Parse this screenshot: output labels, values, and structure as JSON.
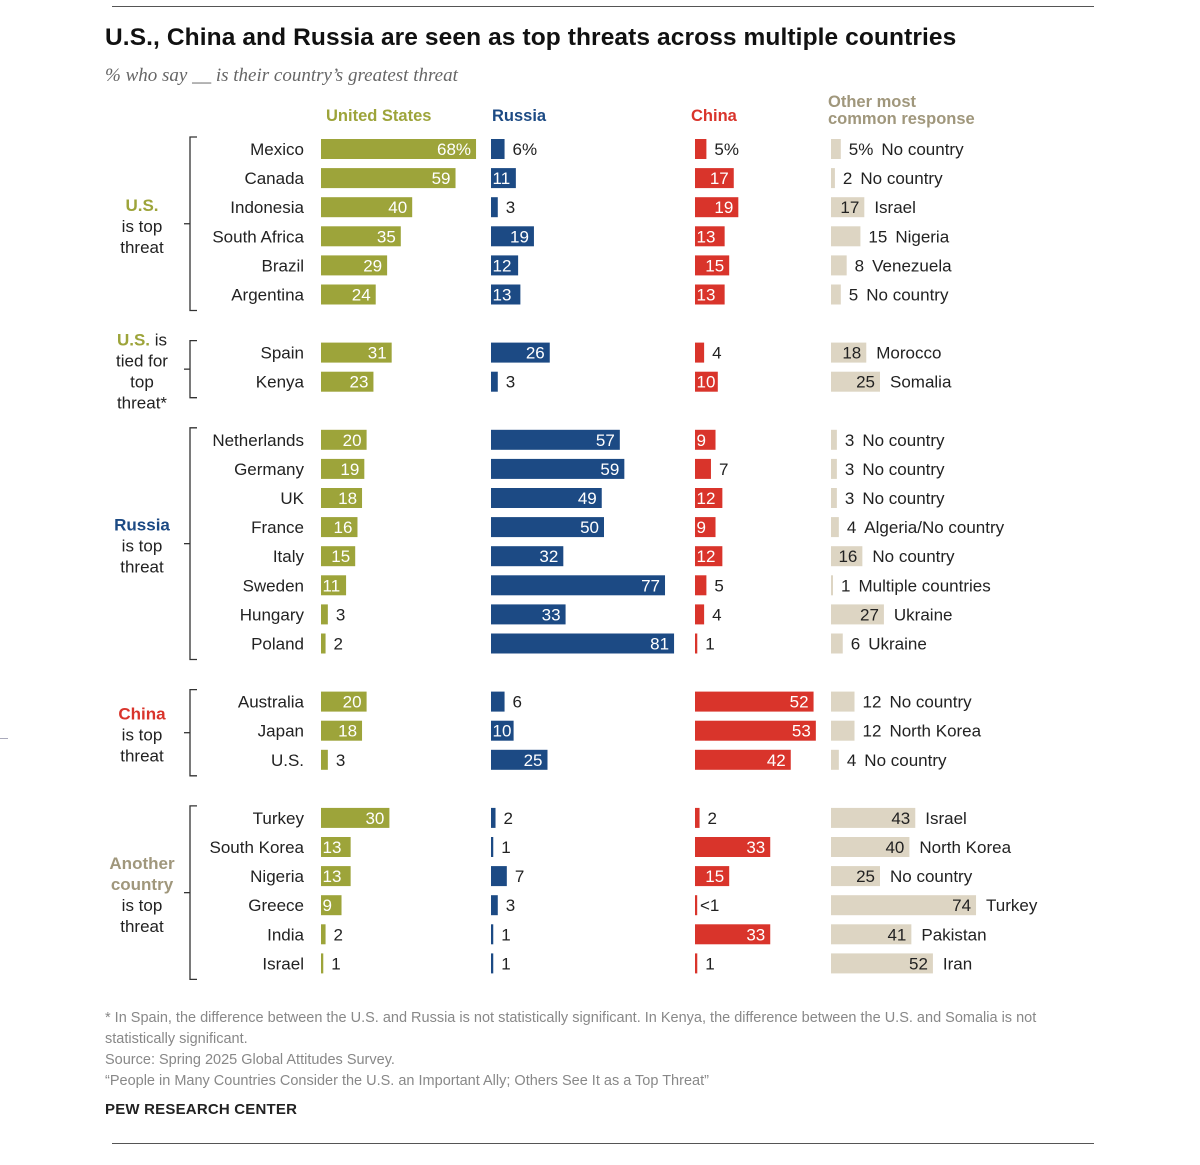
{
  "title": "U.S., China and Russia are seen as top threats across multiple countries",
  "subtitle": "% who say __ is their country’s greatest threat",
  "columns": {
    "us": "United States",
    "russia": "Russia",
    "china": "China",
    "other_line1": "Other most",
    "other_line2": "common response"
  },
  "colors": {
    "us": "#9da43a",
    "russia": "#1c4a84",
    "china": "#d9342b",
    "other": "#ddd5c3",
    "other_text": "#a0977c",
    "bracket": "#333333"
  },
  "chart_data": {
    "type": "bar",
    "title": "U.S., China and Russia are seen as top threats across multiple countries",
    "subtitle": "% who say __ is their country’s greatest threat",
    "series_names": [
      "United States",
      "Russia",
      "China",
      "Other most common response"
    ],
    "groups": [
      {
        "label_lines": [
          "U.S.",
          "is top",
          "threat"
        ],
        "label_colored_lines": 1,
        "label_color": "us",
        "rows": [
          {
            "country": "Mexico",
            "us": 68,
            "us_label": "68%",
            "russia": 6,
            "russia_label": "6%",
            "china": 5,
            "china_label": "5%",
            "other": 5,
            "other_value_label": "5%",
            "other_name": "No country"
          },
          {
            "country": "Canada",
            "us": 59,
            "us_label": "59",
            "russia": 11,
            "russia_label": "11",
            "china": 17,
            "china_label": "17",
            "other": 2,
            "other_value_label": "2",
            "other_name": "No country"
          },
          {
            "country": "Indonesia",
            "us": 40,
            "us_label": "40",
            "russia": 3,
            "russia_label": "3",
            "china": 19,
            "china_label": "19",
            "other": 17,
            "other_value_label": "17",
            "other_name": "Israel"
          },
          {
            "country": "South Africa",
            "us": 35,
            "us_label": "35",
            "russia": 19,
            "russia_label": "19",
            "china": 13,
            "china_label": "13",
            "other": 15,
            "other_value_label": "15",
            "other_name": "Nigeria"
          },
          {
            "country": "Brazil",
            "us": 29,
            "us_label": "29",
            "russia": 12,
            "russia_label": "12",
            "china": 15,
            "china_label": "15",
            "other": 8,
            "other_value_label": "8",
            "other_name": "Venezuela"
          },
          {
            "country": "Argentina",
            "us": 24,
            "us_label": "24",
            "russia": 13,
            "russia_label": "13",
            "china": 13,
            "china_label": "13",
            "other": 5,
            "other_value_label": "5",
            "other_name": "No country"
          }
        ]
      },
      {
        "label_lines": [
          "U.S. is",
          "tied for",
          "top",
          "threat*"
        ],
        "label_colored_prefix": "U.S.",
        "label_color": "us",
        "rows": [
          {
            "country": "Spain",
            "us": 31,
            "us_label": "31",
            "russia": 26,
            "russia_label": "26",
            "china": 4,
            "china_label": "4",
            "other": 18,
            "other_value_label": "18",
            "other_name": "Morocco"
          },
          {
            "country": "Kenya",
            "us": 23,
            "us_label": "23",
            "russia": 3,
            "russia_label": "3",
            "china": 10,
            "china_label": "10",
            "other": 25,
            "other_value_label": "25",
            "other_name": "Somalia"
          }
        ]
      },
      {
        "label_lines": [
          "Russia",
          "is top",
          "threat"
        ],
        "label_colored_lines": 1,
        "label_color": "russia",
        "rows": [
          {
            "country": "Netherlands",
            "us": 20,
            "us_label": "20",
            "russia": 57,
            "russia_label": "57",
            "china": 9,
            "china_label": "9",
            "other": 3,
            "other_value_label": "3",
            "other_name": "No country"
          },
          {
            "country": "Germany",
            "us": 19,
            "us_label": "19",
            "russia": 59,
            "russia_label": "59",
            "china": 7,
            "china_label": "7",
            "other": 3,
            "other_value_label": "3",
            "other_name": "No country"
          },
          {
            "country": "UK",
            "us": 18,
            "us_label": "18",
            "russia": 49,
            "russia_label": "49",
            "china": 12,
            "china_label": "12",
            "other": 3,
            "other_value_label": "3",
            "other_name": "No country"
          },
          {
            "country": "France",
            "us": 16,
            "us_label": "16",
            "russia": 50,
            "russia_label": "50",
            "china": 9,
            "china_label": "9",
            "other": 4,
            "other_value_label": "4",
            "other_name": "Algeria/No country"
          },
          {
            "country": "Italy",
            "us": 15,
            "us_label": "15",
            "russia": 32,
            "russia_label": "32",
            "china": 12,
            "china_label": "12",
            "other": 16,
            "other_value_label": "16",
            "other_name": "No country"
          },
          {
            "country": "Sweden",
            "us": 11,
            "us_label": "11",
            "russia": 77,
            "russia_label": "77",
            "china": 5,
            "china_label": "5",
            "other": 1,
            "other_value_label": "1",
            "other_name": "Multiple countries"
          },
          {
            "country": "Hungary",
            "us": 3,
            "us_label": "3",
            "russia": 33,
            "russia_label": "33",
            "china": 4,
            "china_label": "4",
            "other": 27,
            "other_value_label": "27",
            "other_name": "Ukraine"
          },
          {
            "country": "Poland",
            "us": 2,
            "us_label": "2",
            "russia": 81,
            "russia_label": "81",
            "china": 1,
            "china_label": "1",
            "other": 6,
            "other_value_label": "6",
            "other_name": "Ukraine"
          }
        ]
      },
      {
        "label_lines": [
          "China",
          "is top",
          "threat"
        ],
        "label_colored_lines": 1,
        "label_color": "china",
        "rows": [
          {
            "country": "Australia",
            "us": 20,
            "us_label": "20",
            "russia": 6,
            "russia_label": "6",
            "china": 52,
            "china_label": "52",
            "other": 12,
            "other_value_label": "12",
            "other_name": "No country"
          },
          {
            "country": "Japan",
            "us": 18,
            "us_label": "18",
            "russia": 10,
            "russia_label": "10",
            "china": 53,
            "china_label": "53",
            "other": 12,
            "other_value_label": "12",
            "other_name": "North Korea"
          },
          {
            "country": "U.S.",
            "us": 3,
            "us_label": "3",
            "russia": 25,
            "russia_label": "25",
            "china": 42,
            "china_label": "42",
            "other": 4,
            "other_value_label": "4",
            "other_name": "No country"
          }
        ]
      },
      {
        "label_lines": [
          "Another",
          "country",
          "is top",
          "threat"
        ],
        "label_colored_lines": 2,
        "label_color": "other_text",
        "rows": [
          {
            "country": "Turkey",
            "us": 30,
            "us_label": "30",
            "russia": 2,
            "russia_label": "2",
            "china": 2,
            "china_label": "2",
            "other": 43,
            "other_value_label": "43",
            "other_name": "Israel"
          },
          {
            "country": "South Korea",
            "us": 13,
            "us_label": "13",
            "russia": 1,
            "russia_label": "1",
            "china": 33,
            "china_label": "33",
            "other": 40,
            "other_value_label": "40",
            "other_name": "North Korea"
          },
          {
            "country": "Nigeria",
            "us": 13,
            "us_label": "13",
            "russia": 7,
            "russia_label": "7",
            "china": 15,
            "china_label": "15",
            "other": 25,
            "other_value_label": "25",
            "other_name": "No country"
          },
          {
            "country": "Greece",
            "us": 9,
            "us_label": "9",
            "russia": 3,
            "russia_label": "3",
            "china": 0.3,
            "china_label": "<1",
            "other": 74,
            "other_value_label": "74",
            "other_name": "Turkey"
          },
          {
            "country": "India",
            "us": 2,
            "us_label": "2",
            "russia": 1,
            "russia_label": "1",
            "china": 33,
            "china_label": "33",
            "other": 41,
            "other_value_label": "41",
            "other_name": "Pakistan"
          },
          {
            "country": "Israel",
            "us": 1,
            "us_label": "1",
            "russia": 1,
            "russia_label": "1",
            "china": 1,
            "china_label": "1",
            "other": 52,
            "other_value_label": "52",
            "other_name": "Iran"
          }
        ]
      }
    ]
  },
  "footnotes": {
    "note": "* In Spain, the difference between the U.S. and Russia is not statistically significant. In Kenya, the difference between the U.S. and Somalia is not statistically significant.",
    "source": "Source: Spring 2025 Global Attitudes Survey.",
    "report": "“People in Many Countries Consider the U.S. an Important Ally; Others See It as a Top Threat”",
    "brand": "PEW RESEARCH CENTER"
  }
}
